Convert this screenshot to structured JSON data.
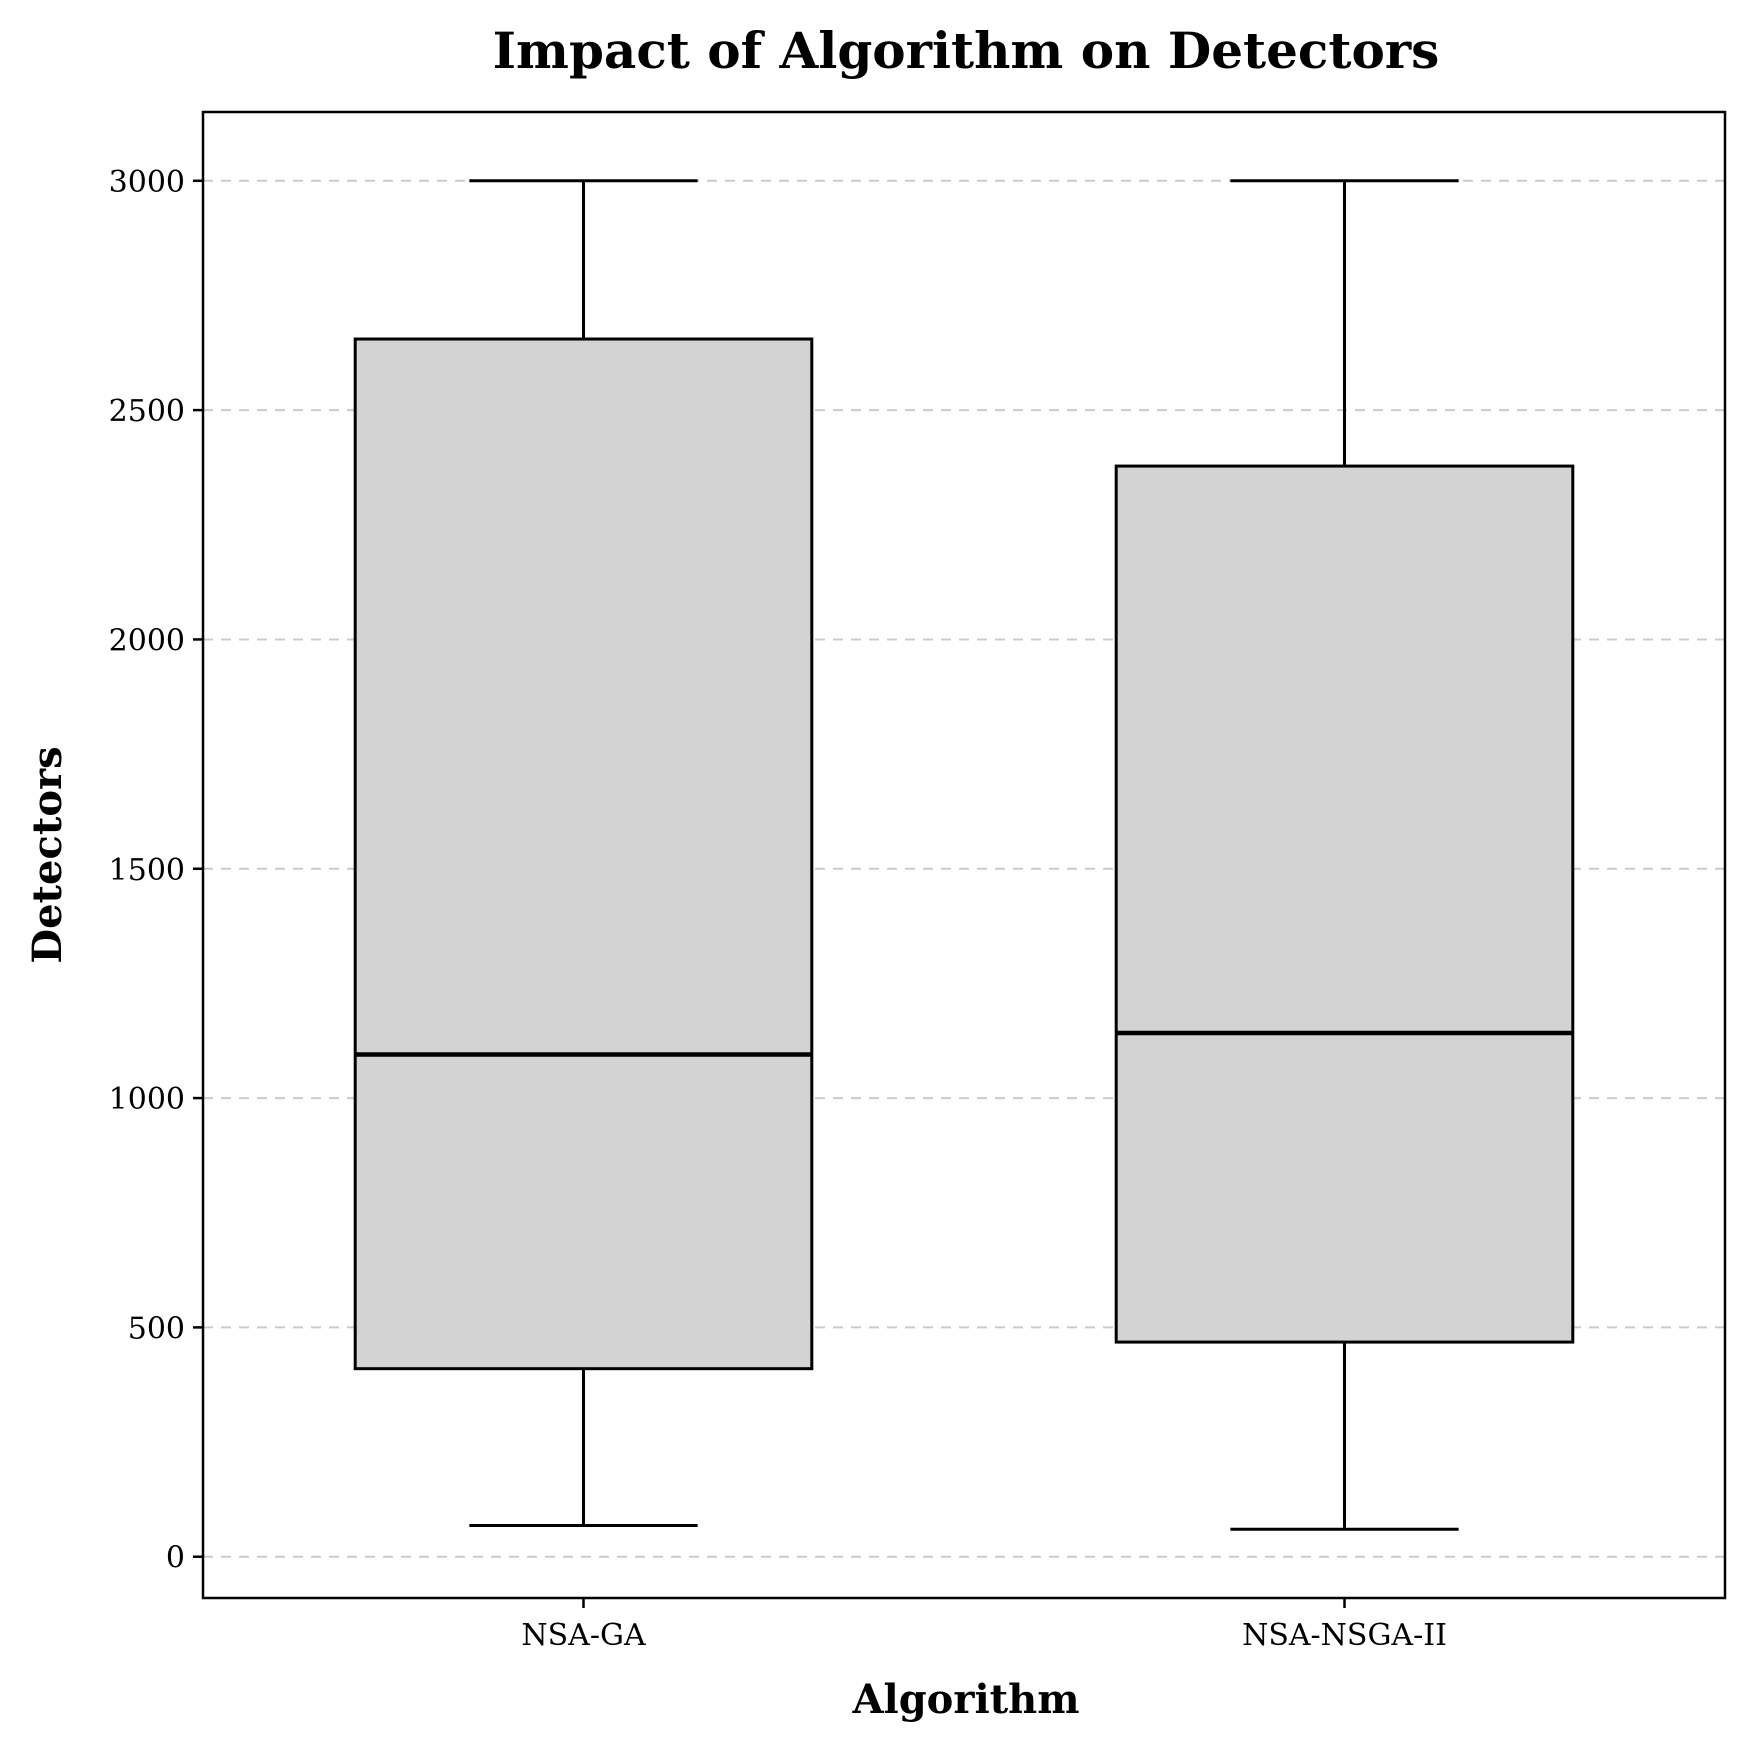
{
  "chart_data": {
    "type": "box",
    "title": "Impact of Algorithm on Detectors",
    "xlabel": "Algorithm",
    "ylabel": "Detectors",
    "ylim": [
      -90,
      3150
    ],
    "yticks": [
      0,
      500,
      1000,
      1500,
      2000,
      2500,
      3000
    ],
    "grid": "y-dashed",
    "colors": {
      "box_fill": "#d3d3d3",
      "line": "#000000",
      "grid": "#cccccc"
    },
    "categories": [
      "NSA-GA",
      "NSA-NSGA-II"
    ],
    "boxes": [
      {
        "label": "NSA-GA",
        "min": 68,
        "q1": 410,
        "median": 1095,
        "q3": 2655,
        "max": 3000
      },
      {
        "label": "NSA-NSGA-II",
        "min": 60,
        "q1": 468,
        "median": 1142,
        "q3": 2378,
        "max": 3000
      }
    ]
  }
}
